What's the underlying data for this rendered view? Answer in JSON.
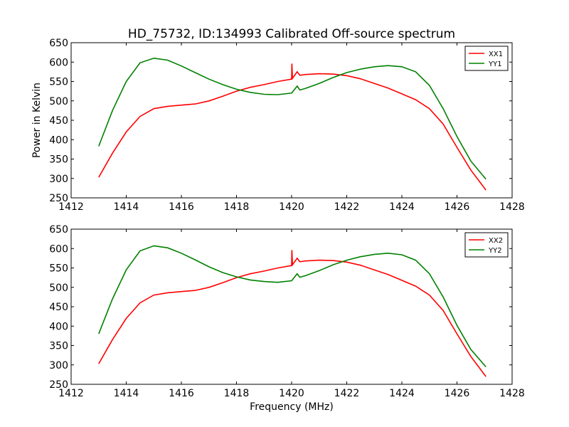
{
  "figure": {
    "title": "HD_75732, ID:134993 Calibrated Off-source spectrum"
  },
  "chart_data": [
    {
      "type": "line",
      "panel": "top",
      "title": "HD_75732, ID:134993 Calibrated Off-source spectrum",
      "xlabel": "",
      "ylabel": "Power in Kelvin",
      "xlim": [
        1412,
        1428
      ],
      "ylim": [
        250,
        650
      ],
      "xticks": [
        "1412",
        "1414",
        "1416",
        "1418",
        "1420",
        "1422",
        "1424",
        "1426",
        "1428"
      ],
      "yticks": [
        "250",
        "300",
        "350",
        "400",
        "450",
        "500",
        "550",
        "600",
        "650"
      ],
      "grid": false,
      "legend": "top-right",
      "series": [
        {
          "name": "XX1",
          "color": "#ff0000",
          "x": [
            1413.0,
            1413.5,
            1414.0,
            1414.5,
            1415.0,
            1415.5,
            1416.0,
            1416.5,
            1417.0,
            1417.5,
            1418.0,
            1418.5,
            1419.0,
            1419.5,
            1420.0,
            1420.01,
            1420.03,
            1420.2,
            1420.3,
            1420.5,
            1421.0,
            1421.5,
            1422.0,
            1422.5,
            1423.0,
            1423.5,
            1424.0,
            1424.5,
            1425.0,
            1425.5,
            1426.0,
            1426.5,
            1427.05
          ],
          "values": [
            303,
            365,
            420,
            460,
            480,
            486,
            489,
            492,
            500,
            512,
            525,
            535,
            542,
            550,
            556,
            596,
            558,
            575,
            566,
            568,
            570,
            569,
            565,
            557,
            545,
            533,
            518,
            503,
            480,
            440,
            380,
            322,
            270
          ]
        },
        {
          "name": "YY1",
          "color": "#008000",
          "x": [
            1413.0,
            1413.5,
            1414.0,
            1414.5,
            1415.0,
            1415.5,
            1416.0,
            1416.5,
            1417.0,
            1417.5,
            1418.0,
            1418.5,
            1419.0,
            1419.5,
            1420.0,
            1420.2,
            1420.3,
            1420.5,
            1421.0,
            1421.5,
            1422.0,
            1422.5,
            1423.0,
            1423.5,
            1424.0,
            1424.5,
            1425.0,
            1425.5,
            1426.0,
            1426.5,
            1427.05
          ],
          "values": [
            383,
            475,
            550,
            598,
            610,
            605,
            590,
            573,
            556,
            542,
            530,
            522,
            517,
            516,
            520,
            538,
            528,
            532,
            545,
            560,
            573,
            582,
            588,
            591,
            588,
            575,
            540,
            480,
            408,
            345,
            298
          ]
        }
      ]
    },
    {
      "type": "line",
      "panel": "bottom",
      "title": "",
      "xlabel": "Frequency (MHz)",
      "ylabel": "",
      "xlim": [
        1412,
        1428
      ],
      "ylim": [
        250,
        650
      ],
      "xticks": [
        "1412",
        "1414",
        "1416",
        "1418",
        "1420",
        "1422",
        "1424",
        "1426",
        "1428"
      ],
      "yticks": [
        "250",
        "300",
        "350",
        "400",
        "450",
        "500",
        "550",
        "600",
        "650"
      ],
      "grid": false,
      "legend": "top-right",
      "series": [
        {
          "name": "XX2",
          "color": "#ff0000",
          "x": [
            1413.0,
            1413.5,
            1414.0,
            1414.5,
            1415.0,
            1415.5,
            1416.0,
            1416.5,
            1417.0,
            1417.5,
            1418.0,
            1418.5,
            1419.0,
            1419.5,
            1420.0,
            1420.01,
            1420.03,
            1420.2,
            1420.3,
            1420.5,
            1421.0,
            1421.5,
            1422.0,
            1422.5,
            1423.0,
            1423.5,
            1424.0,
            1424.5,
            1425.0,
            1425.5,
            1426.0,
            1426.5,
            1427.05
          ],
          "values": [
            303,
            365,
            420,
            460,
            480,
            486,
            489,
            492,
            500,
            512,
            525,
            535,
            542,
            550,
            556,
            596,
            558,
            575,
            566,
            568,
            570,
            569,
            565,
            557,
            545,
            533,
            518,
            503,
            480,
            440,
            380,
            322,
            270
          ]
        },
        {
          "name": "YY2",
          "color": "#008000",
          "x": [
            1413.0,
            1413.5,
            1414.0,
            1414.5,
            1415.0,
            1415.5,
            1416.0,
            1416.5,
            1417.0,
            1417.5,
            1418.0,
            1418.5,
            1419.0,
            1419.5,
            1420.0,
            1420.2,
            1420.3,
            1420.5,
            1421.0,
            1421.5,
            1422.0,
            1422.5,
            1423.0,
            1423.5,
            1424.0,
            1424.5,
            1425.0,
            1425.5,
            1426.0,
            1426.5,
            1427.05
          ],
          "values": [
            380,
            470,
            545,
            594,
            607,
            602,
            588,
            571,
            553,
            538,
            527,
            519,
            515,
            513,
            517,
            535,
            526,
            530,
            543,
            558,
            570,
            579,
            585,
            588,
            584,
            570,
            535,
            475,
            402,
            340,
            295
          ]
        }
      ]
    }
  ]
}
